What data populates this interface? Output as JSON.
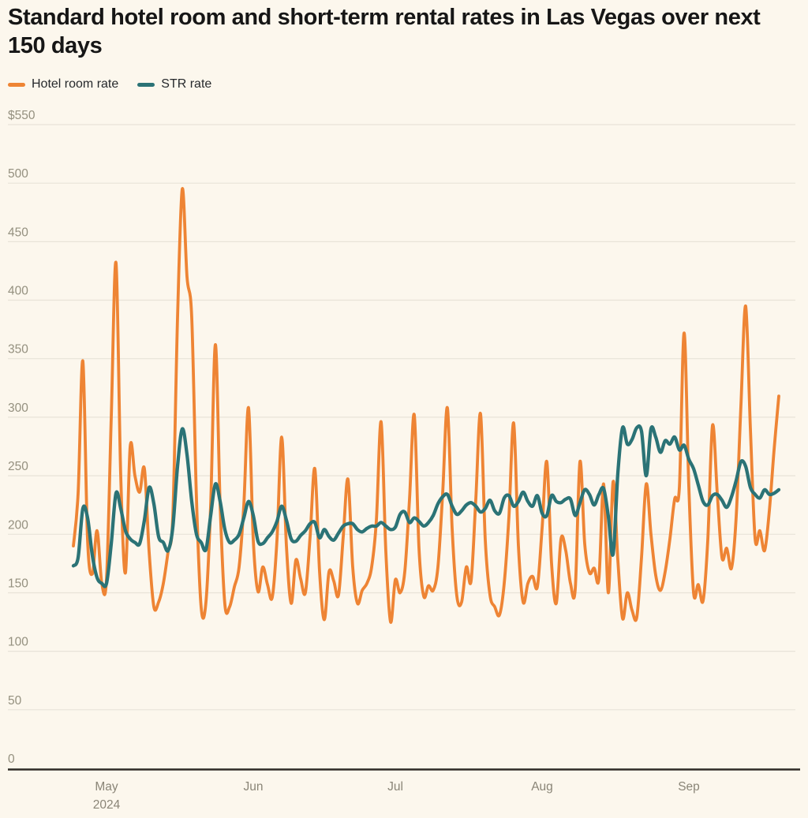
{
  "page": {
    "background_color": "#FCF7ED",
    "gridline_color": "#E8E3D8",
    "axis_color": "#2E2B26"
  },
  "header": {
    "title": "Standard hotel room and short-term rental rates in Las Vegas over next 150 days",
    "legend": [
      {
        "label": "Hotel room rate",
        "color": "#EE8434"
      },
      {
        "label": "STR rate",
        "color": "#2B7376"
      }
    ]
  },
  "chart_data": {
    "type": "line",
    "title": "Standard hotel room and short-term rental rates in Las Vegas over next 150 days",
    "xlabel": "",
    "ylabel": "",
    "ylim": [
      0,
      550
    ],
    "grid": true,
    "legend_position": "top-left",
    "x_unit": "day (Apr 24 2024 – Sep 20 2024, 150 days)",
    "y_ticks": [
      {
        "value": 550,
        "label": "$550"
      },
      {
        "value": 500,
        "label": "500"
      },
      {
        "value": 450,
        "label": "450"
      },
      {
        "value": 400,
        "label": "400"
      },
      {
        "value": 350,
        "label": "350"
      },
      {
        "value": 300,
        "label": "300"
      },
      {
        "value": 250,
        "label": "250"
      },
      {
        "value": 200,
        "label": "200"
      },
      {
        "value": 150,
        "label": "150"
      },
      {
        "value": 100,
        "label": "100"
      },
      {
        "value": 50,
        "label": "50"
      },
      {
        "value": 0,
        "label": "0"
      }
    ],
    "x_ticks": [
      {
        "label": "May",
        "sublabel": "2024",
        "day": 7
      },
      {
        "label": "Jun",
        "sublabel": "",
        "day": 38
      },
      {
        "label": "Jul",
        "sublabel": "",
        "day": 68
      },
      {
        "label": "Aug",
        "sublabel": "",
        "day": 99
      },
      {
        "label": "Sep",
        "sublabel": "",
        "day": 130
      }
    ],
    "series": [
      {
        "name": "Hotel room rate",
        "color": "#EE8434",
        "stroke_width": 3.8,
        "values": [
          190,
          235,
          348,
          195,
          166,
          203,
          158,
          162,
          300,
          432,
          250,
          167,
          275,
          250,
          236,
          256,
          185,
          138,
          142,
          158,
          185,
          215,
          385,
          495,
          420,
          385,
          230,
          137,
          142,
          225,
          362,
          225,
          140,
          138,
          155,
          172,
          225,
          308,
          195,
          151,
          172,
          157,
          146,
          195,
          283,
          190,
          141,
          178,
          162,
          150,
          198,
          256,
          168,
          127,
          168,
          160,
          148,
          198,
          247,
          172,
          141,
          152,
          158,
          172,
          212,
          296,
          185,
          125,
          161,
          150,
          168,
          230,
          302,
          188,
          147,
          156,
          152,
          172,
          235,
          308,
          205,
          147,
          142,
          172,
          160,
          230,
          303,
          195,
          148,
          138,
          131,
          158,
          215,
          295,
          190,
          142,
          158,
          164,
          155,
          205,
          262,
          175,
          141,
          196,
          186,
          158,
          153,
          262,
          192,
          167,
          171,
          162,
          243,
          150,
          245,
          178,
          128,
          150,
          135,
          129,
          180,
          243,
          200,
          165,
          152,
          168,
          196,
          230,
          240,
          372,
          240,
          150,
          157,
          143,
          195,
          293,
          235,
          180,
          188,
          171,
          215,
          310,
          395,
          290,
          196,
          203,
          186,
          220,
          272,
          318
        ]
      },
      {
        "name": "STR rate",
        "color": "#2B7376",
        "stroke_width": 4.3,
        "values": [
          173,
          180,
          222,
          214,
          182,
          163,
          158,
          158,
          192,
          235,
          222,
          203,
          196,
          193,
          192,
          212,
          240,
          226,
          198,
          193,
          186,
          206,
          258,
          290,
          268,
          228,
          200,
          193,
          187,
          216,
          243,
          228,
          204,
          193,
          195,
          200,
          214,
          228,
          216,
          194,
          192,
          197,
          202,
          211,
          224,
          212,
          196,
          194,
          199,
          203,
          209,
          210,
          197,
          204,
          198,
          195,
          201,
          207,
          209,
          209,
          204,
          202,
          205,
          207,
          207,
          210,
          207,
          204,
          206,
          217,
          219,
          210,
          214,
          211,
          207,
          210,
          216,
          226,
          232,
          234,
          224,
          217,
          220,
          225,
          227,
          224,
          219,
          222,
          229,
          220,
          218,
          231,
          233,
          224,
          228,
          236,
          228,
          224,
          233,
          218,
          216,
          233,
          228,
          227,
          230,
          230,
          216,
          227,
          238,
          234,
          225,
          234,
          239,
          215,
          183,
          252,
          291,
          277,
          281,
          291,
          288,
          250,
          290,
          283,
          270,
          280,
          277,
          283,
          272,
          276,
          264,
          256,
          242,
          228,
          225,
          233,
          234,
          229,
          223,
          232,
          246,
          262,
          258,
          240,
          234,
          231,
          238,
          234,
          235,
          238
        ]
      }
    ]
  }
}
